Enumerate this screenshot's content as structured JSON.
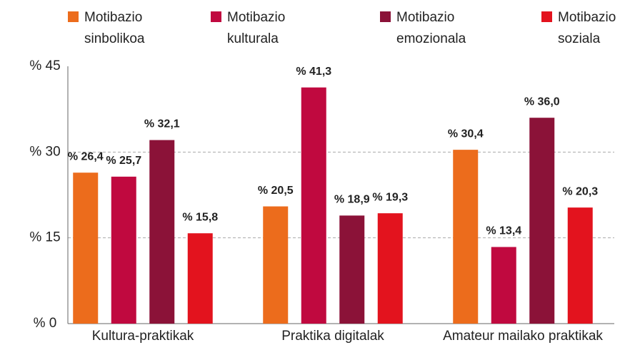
{
  "chart_data": {
    "type": "bar",
    "categories": [
      "Kultura-praktikak",
      "Praktika digitalak",
      "Amateur mailako praktikak"
    ],
    "series": [
      {
        "name": "Motibazio sinbolikoa",
        "color": "#ec6c1c",
        "values": [
          26.4,
          20.5,
          30.4
        ],
        "value_labels": [
          "% 26,4",
          "% 20,5",
          "% 30,4"
        ]
      },
      {
        "name": "Motibazio kulturala",
        "color": "#c0093f",
        "values": [
          25.7,
          41.3,
          13.4
        ],
        "value_labels": [
          "% 25,7",
          "% 41,3",
          "% 13,4"
        ]
      },
      {
        "name": "Motibazio emozionala",
        "color": "#8b1238",
        "values": [
          32.1,
          18.9,
          36.0
        ],
        "value_labels": [
          "% 32,1",
          "% 18,9",
          "% 36,0"
        ]
      },
      {
        "name": "Motibazio soziala",
        "color": "#e3131e",
        "values": [
          15.8,
          19.3,
          20.3
        ],
        "value_labels": [
          "% 15,8",
          "% 19,3",
          "% 20,3"
        ]
      }
    ],
    "ylim": [
      0,
      45
    ],
    "yticks": [
      {
        "value": 0,
        "label": "% 0"
      },
      {
        "value": 15,
        "label": "% 15"
      },
      {
        "value": 30,
        "label": "% 30"
      },
      {
        "value": 45,
        "label": "% 45"
      }
    ],
    "grid": true
  }
}
